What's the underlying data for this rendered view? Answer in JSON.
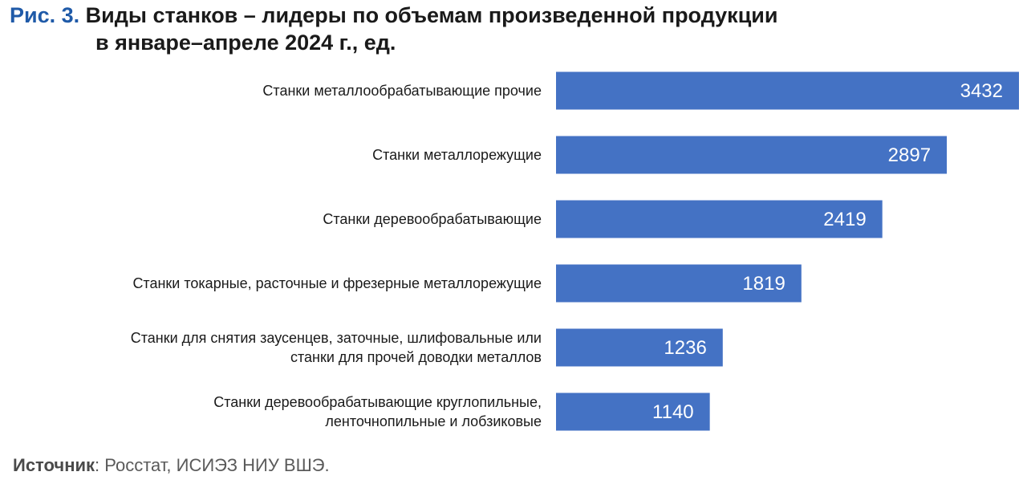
{
  "figure": {
    "prefix": "Рис. 3.",
    "title_line1": "Виды станков – лидеры по объемам произведенной продукции",
    "title_line2": "в январе–апреле 2024 г., ед."
  },
  "source": {
    "label": "Источник",
    "text": ": Росстат, ИСИЭЗ НИУ ВШЭ."
  },
  "colors": {
    "bar": "#4472c4",
    "title_prefix": "#1f5aa8"
  },
  "chart_data": {
    "type": "bar",
    "orientation": "horizontal",
    "categories": [
      [
        "Станки металлообрабатывающие прочие"
      ],
      [
        "Станки металлорежущие"
      ],
      [
        "Станки деревообрабатывающие"
      ],
      [
        "Станки токарные, расточные и фрезерные металлорежущие"
      ],
      [
        "Станки для снятия заусенцев, заточные, шлифовальные или",
        "станки для прочей доводки металлов"
      ],
      [
        "Станки деревообрабатывающие круглопильные,",
        "ленточнопильные и лобзиковые"
      ]
    ],
    "values": [
      3432,
      2897,
      2419,
      1819,
      1236,
      1140
    ],
    "data_labels": [
      "3432",
      "2897",
      "2419",
      "1819",
      "1236",
      "1140"
    ],
    "xlim": [
      0,
      3432
    ],
    "grid": false,
    "legend": "none"
  }
}
